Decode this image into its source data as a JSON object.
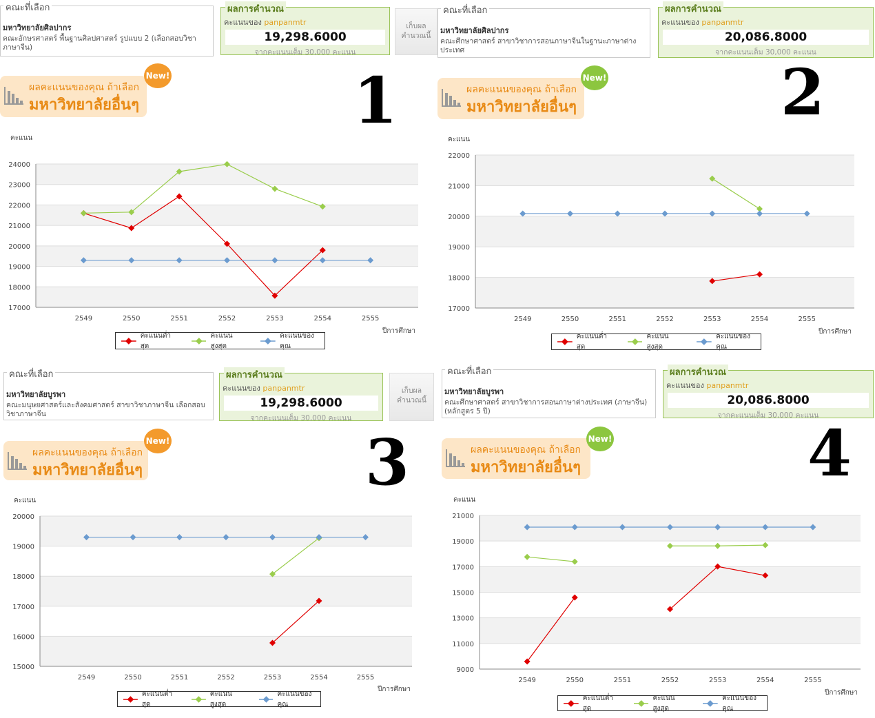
{
  "common": {
    "faculty_box_title": "คณะที่เลือก",
    "result_title": "ผลการคำนวณ",
    "score_of": "คะแนนของ",
    "username": "panpanmtr",
    "full_score": "จากคะแนนเต็ม 30,000 คะแนน",
    "save_button": "เก็บผล คำนวณนี้",
    "banner_line1": "ผลคะแนนของคุณ ถ้าเลือก",
    "banner_line2": "มหาวิทยาลัยอื่นๆ",
    "new_badge": "New!",
    "y_label": "คะแนน",
    "x_label": "ปีการศึกษา",
    "legend": [
      "คะแนนต่ำสุด",
      "คะแนนสูงสุด",
      "คะแนนของคุณ"
    ],
    "colors": {
      "min": "#e00000",
      "max": "#9acd4c",
      "yours": "#6b9bcf",
      "orange": "#f39a2c",
      "green": "#8cc63f"
    }
  },
  "panels": [
    {
      "number": "1",
      "university": "มหาวิทยาลัยศิลปากร",
      "faculty": "คณะอักษรศาสตร์ พื้นฐานศิลปศาสตร์ รูปแบบ 2 (เลือกสอบวิชาภาษาจีน)",
      "score": "19,298.6000",
      "has_save": true,
      "badge_color": "orange"
    },
    {
      "number": "2",
      "university": "มหาวิทยาลัยศิลปากร",
      "faculty": "คณะศึกษาศาสตร์ สาขาวิชาการสอนภาษาจีนในฐานะภาษาต่างประเทศ",
      "score": "20,086.8000",
      "has_save": false,
      "badge_color": "green"
    },
    {
      "number": "3",
      "university": "มหาวิทยาลัยบูรพา",
      "faculty": "คณะมนุษยศาสตร์และสังคมศาสตร์ สาขาวิชาภาษาจีน เลือกสอบวิชาภาษาจีน",
      "score": "19,298.6000",
      "has_save": true,
      "badge_color": "orange"
    },
    {
      "number": "4",
      "university": "มหาวิทยาลัยบูรพา",
      "faculty": "คณะศึกษาศาสตร์ สาขาวิชาการสอนภาษาต่างประเทศ (ภาษาจีน) (หลักสูตร 5 ปี)",
      "score": "20,086.8000",
      "has_save": false,
      "badge_color": "green"
    }
  ],
  "chart_data": [
    {
      "type": "line",
      "categories": [
        "2549",
        "2550",
        "2551",
        "2552",
        "2553",
        "2554",
        "2555"
      ],
      "ylim": [
        17000,
        24000
      ],
      "yticks": [
        "17000",
        "18000",
        "19000",
        "20000",
        "21000",
        "22000",
        "23000",
        "24000"
      ],
      "series": [
        {
          "name": "คะแนนต่ำสุด",
          "values": [
            21600,
            20870,
            22420,
            20100,
            17570,
            19790,
            null
          ]
        },
        {
          "name": "คะแนนสูงสุด",
          "values": [
            21600,
            21650,
            23630,
            23990,
            22790,
            21920,
            null
          ]
        },
        {
          "name": "คะแนนของคุณ",
          "values": [
            19298.6,
            19298.6,
            19298.6,
            19298.6,
            19298.6,
            19298.6,
            19298.6
          ]
        }
      ]
    },
    {
      "type": "line",
      "categories": [
        "2549",
        "2550",
        "2551",
        "2552",
        "2553",
        "2554",
        "2555"
      ],
      "ylim": [
        17000,
        22000
      ],
      "yticks": [
        "17000",
        "18000",
        "19000",
        "20000",
        "21000",
        "22000"
      ],
      "series": [
        {
          "name": "คะแนนต่ำสุด",
          "values": [
            null,
            null,
            null,
            null,
            17880,
            18100,
            null
          ]
        },
        {
          "name": "คะแนนสูงสุด",
          "values": [
            null,
            null,
            null,
            null,
            21230,
            20240,
            null
          ]
        },
        {
          "name": "คะแนนของคุณ",
          "values": [
            20086.8,
            20086.8,
            20086.8,
            20086.8,
            20086.8,
            20086.8,
            20086.8
          ]
        }
      ]
    },
    {
      "type": "line",
      "categories": [
        "2549",
        "2550",
        "2551",
        "2552",
        "2553",
        "2554",
        "2555"
      ],
      "ylim": [
        15000,
        20000
      ],
      "yticks": [
        "15000",
        "16000",
        "17000",
        "18000",
        "19000",
        "20000"
      ],
      "series": [
        {
          "name": "คะแนนต่ำสุด",
          "values": [
            null,
            null,
            null,
            null,
            15780,
            17180,
            null
          ]
        },
        {
          "name": "คะแนนสูงสุด",
          "values": [
            null,
            null,
            null,
            null,
            18070,
            19270,
            null
          ]
        },
        {
          "name": "คะแนนของคุณ",
          "values": [
            19298.6,
            19298.6,
            19298.6,
            19298.6,
            19298.6,
            19298.6,
            19298.6
          ]
        }
      ]
    },
    {
      "type": "line",
      "categories": [
        "2549",
        "2550",
        "2551",
        "2552",
        "2553",
        "2554",
        "2555"
      ],
      "ylim": [
        9000,
        21000
      ],
      "yticks": [
        "9000",
        "11000",
        "13000",
        "15000",
        "17000",
        "19000",
        "21000"
      ],
      "series": [
        {
          "name": "คะแนนต่ำสุด",
          "values": [
            9590,
            14590,
            null,
            13680,
            17010,
            16310,
            null
          ]
        },
        {
          "name": "คะแนนสูงสุด",
          "values": [
            17760,
            17390,
            null,
            18620,
            18620,
            18680,
            null
          ]
        },
        {
          "name": "คะแนนของคุณ",
          "values": [
            20086.8,
            20086.8,
            20086.8,
            20086.8,
            20086.8,
            20086.8,
            20086.8
          ]
        }
      ]
    }
  ]
}
